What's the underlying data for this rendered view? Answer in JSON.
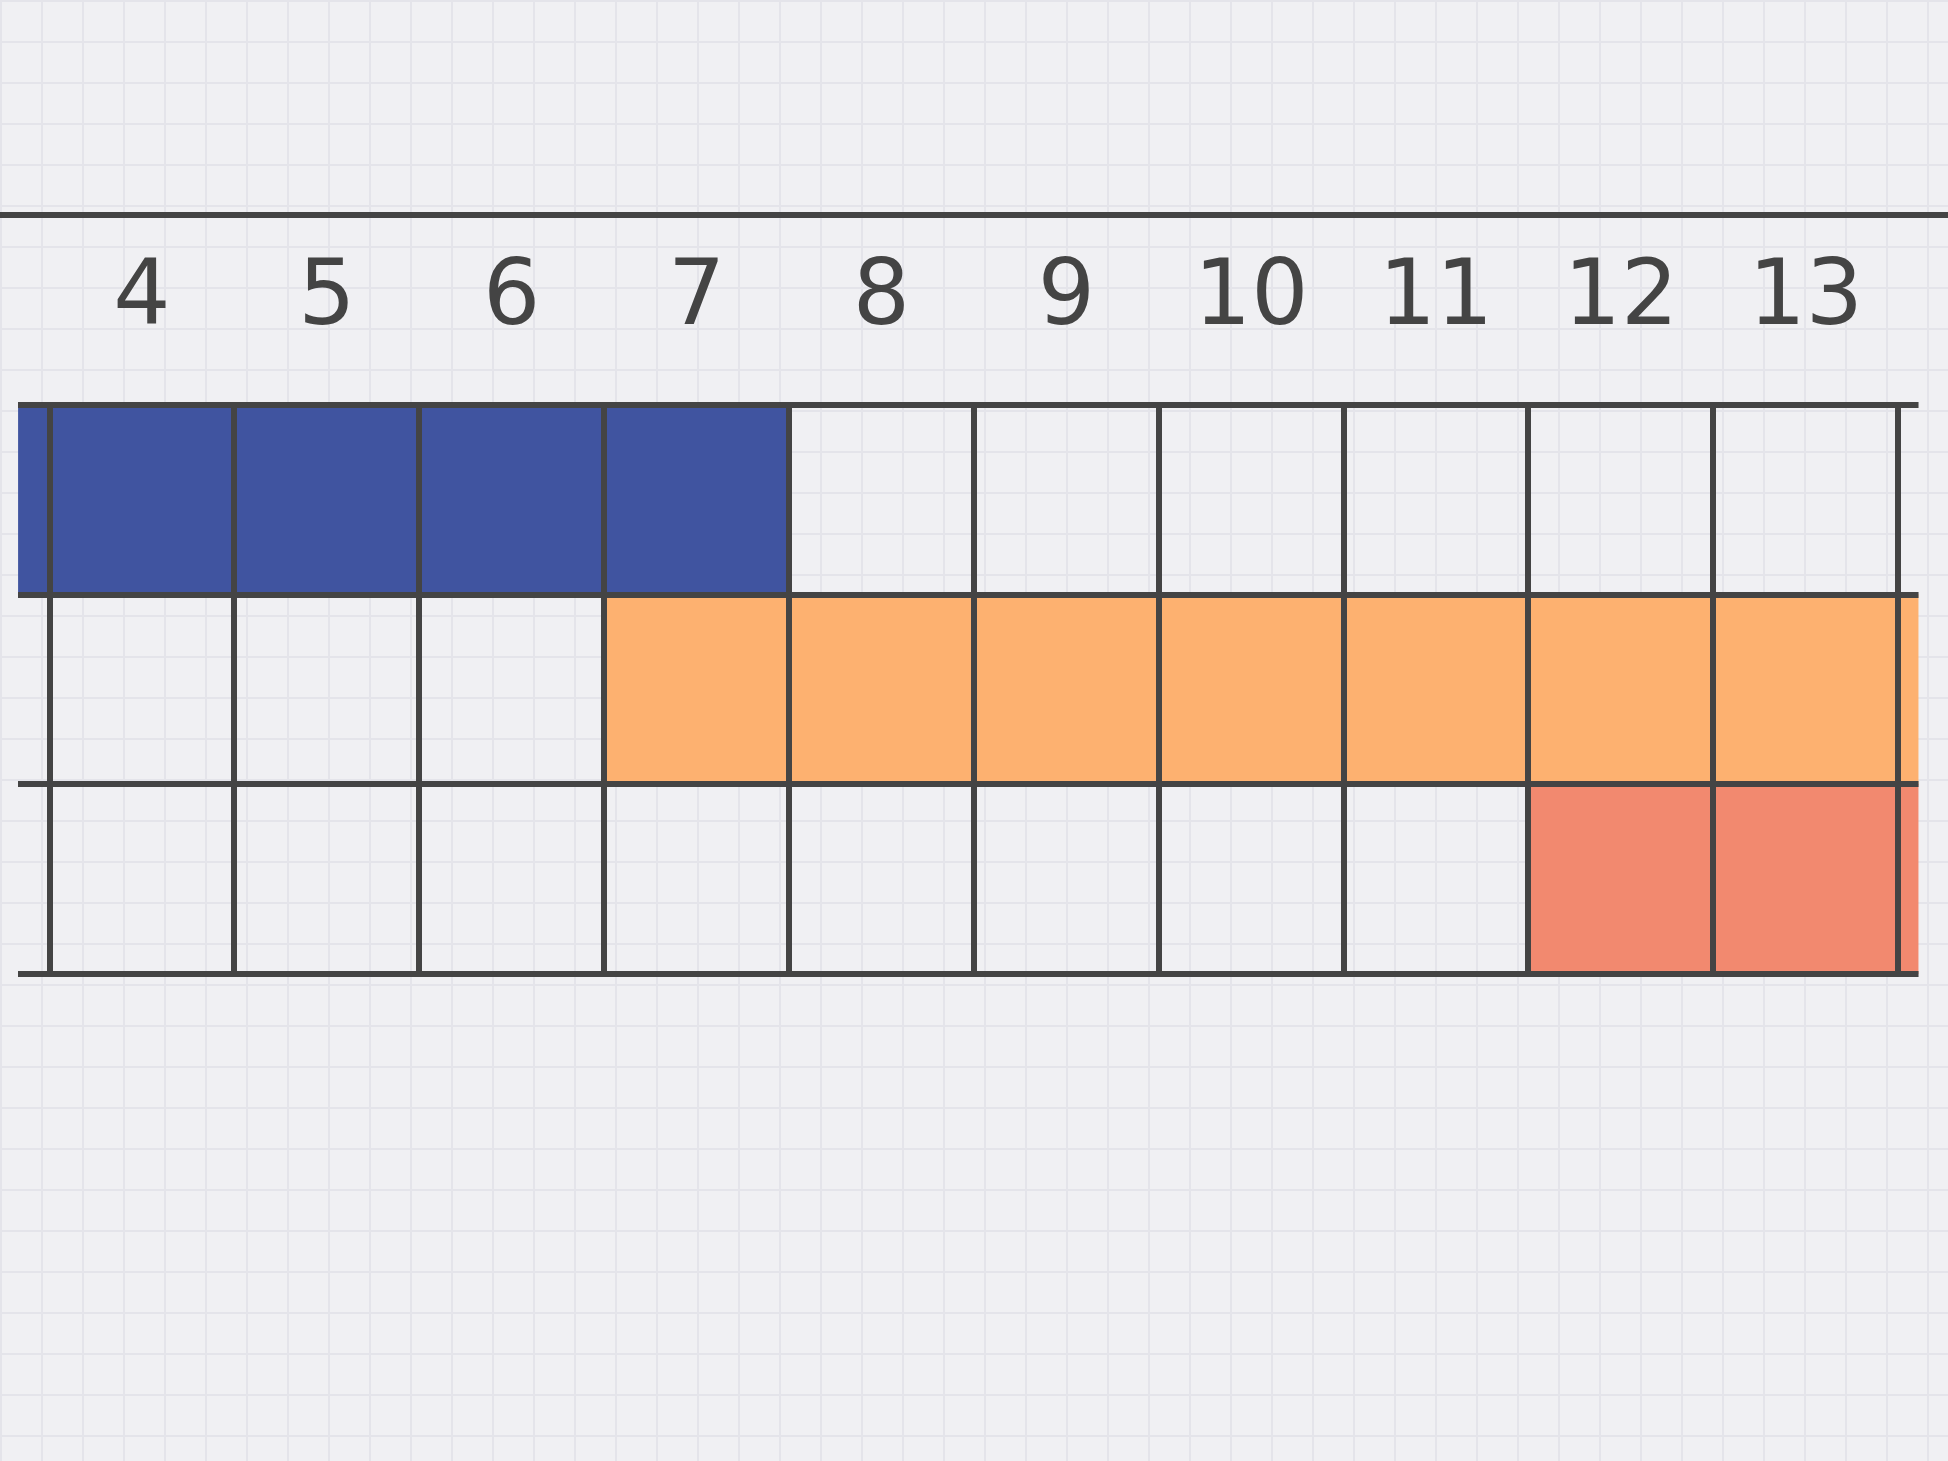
{
  "chart_data": {
    "type": "bar",
    "orientation": "horizontal",
    "categories": [
      null,
      null,
      null
    ],
    "base": [
      3.33,
      6.5,
      11.5
    ],
    "values": [
      4.17,
      7.11,
      2.11
    ],
    "colors": [
      "#4054a0",
      "#fdb170",
      "#f2896f"
    ],
    "xlim": [
      3.33,
      13.61
    ],
    "xticks": [
      {
        "value": 3.5,
        "label": null
      },
      4,
      {
        "value": 4.5,
        "label": null
      },
      5,
      {
        "value": 5.5,
        "label": null
      },
      6,
      {
        "value": 6.5,
        "label": null
      },
      7,
      {
        "value": 7.5,
        "label": null
      },
      8,
      {
        "value": 8.5,
        "label": null
      },
      9,
      {
        "value": 9.5,
        "label": null
      },
      10,
      {
        "value": 10.5,
        "label": null
      },
      11,
      {
        "value": 11.5,
        "label": null
      },
      12,
      {
        "value": 12.5,
        "label": null
      },
      13,
      {
        "value": 13.5,
        "label": null
      }
    ],
    "grid": true,
    "legend": false
  }
}
